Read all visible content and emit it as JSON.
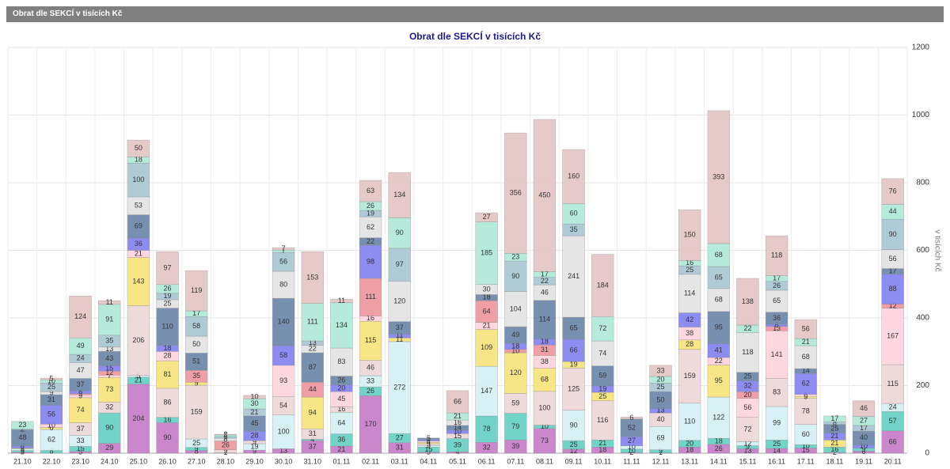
{
  "header": {
    "title": "Obrat dle SEKCÍ v tisících Kč"
  },
  "chart_data": {
    "type": "stacked-bar",
    "title": "Obrat dle SEKCÍ v tisících Kč",
    "y_label": "v tisících Kč",
    "categories": [
      "21.10",
      "22.10",
      "23.10",
      "24.10",
      "25.10",
      "26.10",
      "27.10",
      "28.10",
      "29.10",
      "30.10",
      "31.10",
      "01.11",
      "02.11",
      "03.11",
      "04.11",
      "05.11",
      "06.11",
      "07.11",
      "08.11",
      "09.11",
      "10.11",
      "11.11",
      "12.11",
      "13.11",
      "14.11",
      "15.11",
      "16.11",
      "17.11",
      "18.11",
      "19.11",
      "20.11"
    ],
    "ylim": [
      0,
      1200
    ],
    "yticks": [
      0,
      200,
      400,
      600,
      800,
      1000,
      1200
    ],
    "grid": true,
    "y_axis_side": "right",
    "series": [
      {
        "color": "#c47ac6",
        "values": [
          3,
          0,
          5,
          29,
          204,
          90,
          8,
          1,
          9,
          13,
          37,
          21,
          170,
          31,
          3,
          4,
          32,
          39,
          73,
          12,
          18,
          2,
          1,
          18,
          26,
          13,
          14,
          15,
          2,
          6,
          66
        ]
      },
      {
        "color": "#63cfc2",
        "values": [
          5,
          8,
          15,
          90,
          21,
          16,
          9,
          0,
          0,
          0,
          4,
          36,
          26,
          27,
          15,
          39,
          78,
          79,
          10,
          25,
          21,
          10,
          9,
          20,
          18,
          9,
          25,
          10,
          16,
          9,
          57
        ]
      },
      {
        "color": "#d3eff4",
        "values": [
          5,
          62,
          33,
          0,
          5,
          0,
          25,
          0,
          19,
          100,
          0,
          64,
          33,
          272,
          5,
          0,
          147,
          0,
          0,
          90,
          0,
          10,
          69,
          110,
          122,
          12,
          99,
          60,
          0,
          0,
          24
        ]
      },
      {
        "color": "#ecd5d7",
        "values": [
          0,
          0,
          37,
          32,
          206,
          86,
          159,
          9,
          9,
          54,
          31,
          16,
          46,
          0,
          5,
          15,
          0,
          59,
          100,
          125,
          116,
          0,
          40,
          159,
          0,
          72,
          83,
          78,
          0,
          0,
          115
        ]
      },
      {
        "color": "#f7e278",
        "values": [
          2,
          6,
          74,
          73,
          143,
          81,
          9,
          0,
          0,
          0,
          94,
          0,
          115,
          11,
          4,
          0,
          109,
          120,
          68,
          19,
          25,
          0,
          0,
          28,
          95,
          0,
          0,
          5,
          21,
          0,
          0
        ]
      },
      {
        "color": "#ffd3de",
        "values": [
          0,
          10,
          9,
          7,
          21,
          28,
          0,
          0,
          0,
          93,
          0,
          45,
          16,
          0,
          4,
          0,
          21,
          0,
          38,
          0,
          0,
          0,
          0,
          38,
          22,
          56,
          141,
          6,
          0,
          0,
          167
        ]
      },
      {
        "color": "#f0959c",
        "values": [
          0,
          0,
          3,
          12,
          0,
          0,
          35,
          26,
          0,
          0,
          44,
          0,
          111,
          0,
          0,
          0,
          64,
          10,
          31,
          0,
          0,
          0,
          0,
          0,
          0,
          20,
          13,
          0,
          0,
          0,
          12
        ]
      },
      {
        "color": "#7f7ff0",
        "values": [
          6,
          56,
          8,
          15,
          36,
          18,
          0,
          0,
          28,
          58,
          0,
          20,
          98,
          11,
          4,
          10,
          0,
          18,
          18,
          66,
          19,
          27,
          13,
          42,
          41,
          32,
          6,
          62,
          21,
          10,
          88
        ]
      },
      {
        "color": "#6984a6",
        "values": [
          48,
          31,
          37,
          43,
          69,
          110,
          51,
          0,
          45,
          140,
          87,
          26,
          22,
          37,
          5,
          14,
          18,
          49,
          114,
          65,
          59,
          52,
          50,
          0,
          95,
          25,
          36,
          14,
          25,
          40,
          17
        ]
      },
      {
        "color": "#e2e2e2",
        "values": [
          0,
          9,
          47,
          13,
          53,
          25,
          50,
          8,
          0,
          80,
          22,
          83,
          62,
          120,
          0,
          16,
          30,
          104,
          46,
          241,
          74,
          0,
          0,
          114,
          68,
          118,
          65,
          68,
          0,
          0,
          56
        ]
      },
      {
        "color": "#a6c5d1",
        "values": [
          2,
          25,
          24,
          35,
          100,
          19,
          58,
          5,
          21,
          56,
          13,
          0,
          19,
          97,
          0,
          0,
          0,
          90,
          22,
          35,
          0,
          0,
          25,
          25,
          65,
          0,
          26,
          0,
          8,
          17,
          90
        ]
      },
      {
        "color": "#aee9d8",
        "values": [
          23,
          10,
          49,
          91,
          18,
          26,
          17,
          5,
          30,
          7,
          111,
          134,
          26,
          90,
          0,
          21,
          185,
          23,
          17,
          60,
          72,
          0,
          20,
          16,
          68,
          22,
          17,
          21,
          17,
          27,
          44
        ]
      },
      {
        "color": "#e3c4c4",
        "values": [
          0,
          5,
          124,
          11,
          50,
          97,
          119,
          2,
          10,
          7,
          153,
          11,
          63,
          134,
          0,
          66,
          27,
          356,
          450,
          160,
          184,
          6,
          33,
          150,
          393,
          138,
          118,
          56,
          0,
          46,
          76
        ]
      }
    ]
  }
}
